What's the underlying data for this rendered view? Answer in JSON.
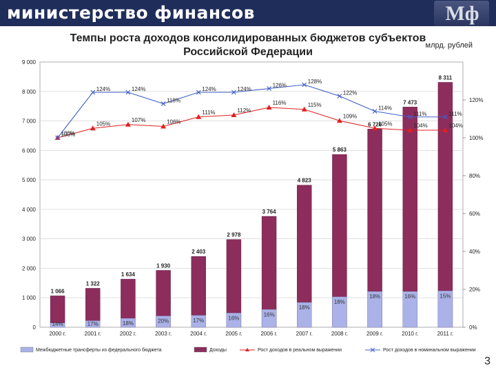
{
  "header": {
    "ministry": "министерство финансов",
    "logo_text": "Мф"
  },
  "slide": {
    "page_number": "3"
  },
  "chart_data": {
    "type": "bar",
    "title_line1": "Темпы роста доходов консолидированных бюджетов субъектов",
    "title_line2": "Российской Федерации",
    "units": "млрд. рублей",
    "categories": [
      "2000 г.",
      "2001 г.",
      "2002 г.",
      "2003 г.",
      "2004 г.",
      "2005 г.",
      "2006 г.",
      "2007 г.",
      "2008 г.",
      "2009 г.",
      "2010 г.",
      "2011 г."
    ],
    "y_left": {
      "min": 0,
      "max": 9000,
      "ticks": [
        0,
        1000,
        2000,
        3000,
        4000,
        5000,
        6000,
        7000,
        8000,
        9000
      ],
      "tick_labels": [
        "0",
        "1 000",
        "2 000",
        "3 000",
        "4 000",
        "5 000",
        "6 000",
        "7 000",
        "8 000",
        "9 000"
      ]
    },
    "y_right": {
      "min": 0,
      "max": 140,
      "ticks": [
        0,
        20,
        40,
        60,
        80,
        100,
        120
      ],
      "tick_labels": [
        "0%",
        "20%",
        "40%",
        "60%",
        "80%",
        "100%",
        "120%"
      ]
    },
    "series": [
      {
        "name": "Межбюджетные трансферты из федерального бюджета",
        "kind": "bar",
        "color": "#aab2e8",
        "values": [
          140,
          220,
          300,
          380,
          400,
          480,
          600,
          840,
          1030,
          1210,
          1210,
          1230
        ],
        "labels": [
          "14%",
          "17%",
          "18%",
          "20%",
          "17%",
          "16%",
          "16%",
          "18%",
          "18%",
          "18%",
          "16%",
          "15%"
        ]
      },
      {
        "name": "Доходы",
        "kind": "bar",
        "color": "#8c2d5c",
        "values": [
          1066,
          1322,
          1634,
          1930,
          2403,
          2978,
          3764,
          4823,
          5863,
          6726,
          7473,
          8311
        ],
        "labels": [
          "1 066",
          "1 322",
          "1 634",
          "1 930",
          "2 403",
          "2 978",
          "3 764",
          "4 823",
          "5 863",
          "6 726",
          "7 473",
          "8 311"
        ]
      },
      {
        "name": "Рост доходов в реальном выражении",
        "kind": "line",
        "axis": "right",
        "color": "#e02020",
        "marker": "triangle",
        "values": [
          100,
          105,
          107,
          106,
          111,
          112,
          116,
          115,
          109,
          105,
          104,
          104
        ],
        "labels": [
          "100%",
          "105%",
          "107%",
          "106%",
          "111%",
          "112%",
          "116%",
          "115%",
          "109%",
          "105%",
          "104%",
          "104%"
        ]
      },
      {
        "name": "Рост доходов в номинальном выражении",
        "kind": "line",
        "axis": "right",
        "color": "#4060c8",
        "marker": "x",
        "values": [
          100,
          124,
          124,
          118,
          124,
          124,
          126,
          128,
          122,
          114,
          111,
          111
        ],
        "labels": [
          "100%",
          "124%",
          "124%",
          "118%",
          "124%",
          "124%",
          "126%",
          "128%",
          "122%",
          "114%",
          "111%",
          "111%"
        ]
      }
    ],
    "grid": true
  }
}
